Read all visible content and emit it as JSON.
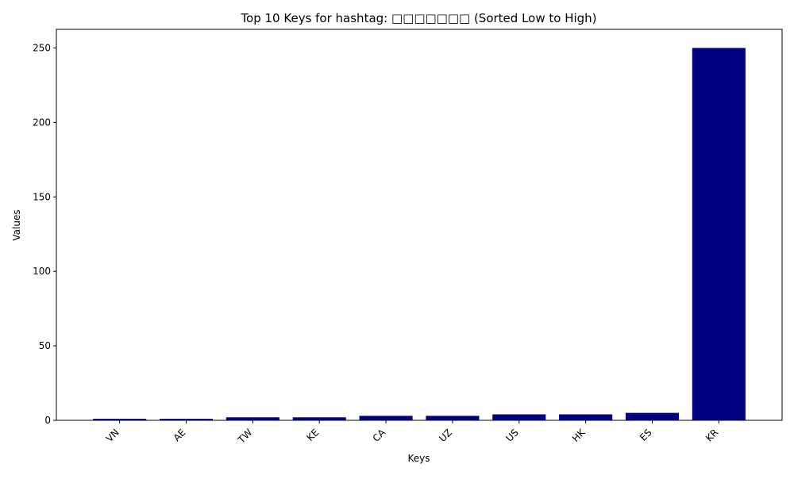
{
  "chart_data": {
    "type": "bar",
    "title": "Top 10 Keys for hashtag: □□□□□□□ (Sorted Low to High)",
    "xlabel": "Keys",
    "ylabel": "Values",
    "categories": [
      "VN",
      "AE",
      "TW",
      "KE",
      "CA",
      "UZ",
      "US",
      "HK",
      "ES",
      "KR"
    ],
    "values": [
      1,
      1,
      2,
      2,
      3,
      3,
      4,
      4,
      5,
      250
    ],
    "ylim": [
      0,
      262.5
    ],
    "yticks": [
      0,
      50,
      100,
      150,
      200,
      250
    ],
    "bar_color": "#000080",
    "grid": false,
    "legend": "none"
  }
}
